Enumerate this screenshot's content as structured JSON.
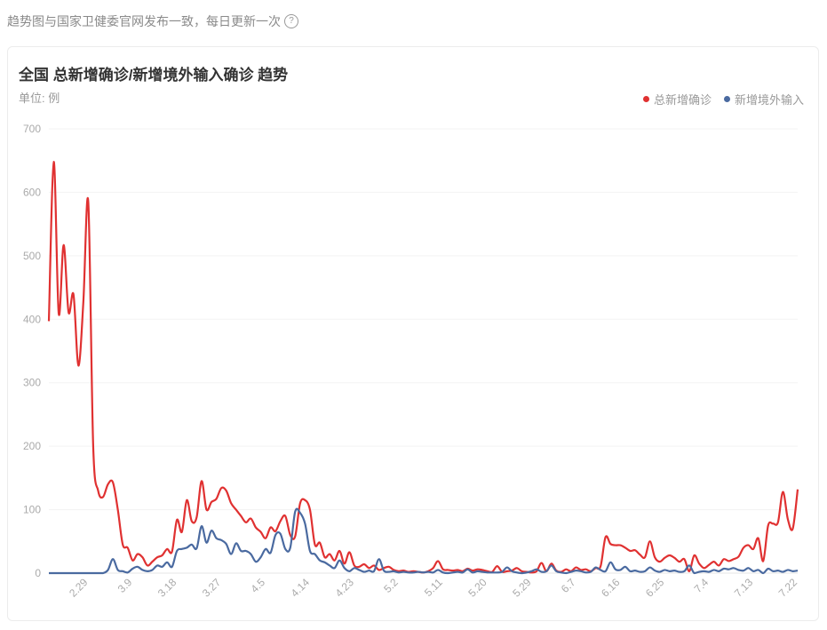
{
  "header": {
    "note": "趋势图与国家卫健委官网发布一致，每日更新一次",
    "help_icon": "question-circle-icon",
    "help_glyph": "?"
  },
  "card": {
    "title": "全国 总新增确诊/新增境外输入确诊 趋势",
    "unit": "单位: 例"
  },
  "colors": {
    "total": "#e03131",
    "imported": "#4a6aa0",
    "grid": "#f3f3f3"
  },
  "chart_data": {
    "type": "line",
    "title": "全国 总新增确诊/新增境外输入确诊 趋势",
    "ylabel": "单位: 例",
    "ylim": [
      0,
      700
    ],
    "yticks": [
      0,
      100,
      200,
      300,
      400,
      500,
      600,
      700
    ],
    "xticks": [
      "2.29",
      "3.9",
      "3.18",
      "3.27",
      "4.5",
      "4.14",
      "4.23",
      "5.2",
      "5.11",
      "5.20",
      "5.29",
      "6.7",
      "6.16",
      "6.25",
      "7.4",
      "7.13",
      "7.22"
    ],
    "grid": true,
    "legend": "top-right",
    "x": [
      "2.21",
      "2.22",
      "2.23",
      "2.24",
      "2.25",
      "2.26",
      "2.27",
      "2.28",
      "2.29",
      "3.1",
      "3.2",
      "3.3",
      "3.4",
      "3.5",
      "3.6",
      "3.7",
      "3.8",
      "3.9",
      "3.10",
      "3.11",
      "3.12",
      "3.13",
      "3.14",
      "3.15",
      "3.16",
      "3.17",
      "3.18",
      "3.19",
      "3.20",
      "3.21",
      "3.22",
      "3.23",
      "3.24",
      "3.25",
      "3.26",
      "3.27",
      "3.28",
      "3.29",
      "3.30",
      "3.31",
      "4.1",
      "4.2",
      "4.3",
      "4.4",
      "4.5",
      "4.6",
      "4.7",
      "4.8",
      "4.9",
      "4.10",
      "4.11",
      "4.12",
      "4.13",
      "4.14",
      "4.15",
      "4.16",
      "4.17",
      "4.18",
      "4.19",
      "4.20",
      "4.21",
      "4.22",
      "4.23",
      "4.24",
      "4.25",
      "4.26",
      "4.27",
      "4.28",
      "4.29",
      "4.30",
      "5.1",
      "5.2",
      "5.3",
      "5.4",
      "5.5",
      "5.6",
      "5.7",
      "5.8",
      "5.9",
      "5.10",
      "5.11",
      "5.12",
      "5.13",
      "5.14",
      "5.15",
      "5.16",
      "5.17",
      "5.18",
      "5.19",
      "5.20",
      "5.21",
      "5.22",
      "5.23",
      "5.24",
      "5.25",
      "5.26",
      "5.27",
      "5.28",
      "5.29",
      "5.30",
      "5.31",
      "6.1",
      "6.2",
      "6.3",
      "6.4",
      "6.5",
      "6.6",
      "6.7",
      "6.8",
      "6.9",
      "6.10",
      "6.11",
      "6.12",
      "6.13",
      "6.14",
      "6.15",
      "6.16",
      "6.17",
      "6.18",
      "6.19",
      "6.20",
      "6.21",
      "6.22",
      "6.23",
      "6.24",
      "6.25",
      "6.26",
      "6.27",
      "6.28",
      "6.29",
      "6.30",
      "7.1",
      "7.2",
      "7.3",
      "7.4",
      "7.5",
      "7.6",
      "7.7",
      "7.8",
      "7.9",
      "7.10",
      "7.11",
      "7.12",
      "7.13",
      "7.14",
      "7.15",
      "7.16",
      "7.17",
      "7.18",
      "7.19",
      "7.20",
      "7.21",
      "7.22"
    ],
    "series": [
      {
        "name": "总新增确诊",
        "values": [
          397,
          648,
          409,
          517,
          411,
          439,
          327,
          427,
          585,
          200,
          130,
          120,
          140,
          143,
          100,
          45,
          40,
          20,
          30,
          25,
          12,
          18,
          25,
          28,
          38,
          34,
          84,
          65,
          115,
          82,
          88,
          145,
          100,
          112,
          117,
          134,
          130,
          110,
          100,
          90,
          80,
          86,
          72,
          65,
          55,
          72,
          66,
          82,
          90,
          60,
          58,
          110,
          115,
          100,
          45,
          48,
          25,
          30,
          20,
          35,
          15,
          33,
          12,
          10,
          14,
          8,
          12,
          5,
          8,
          10,
          5,
          3,
          4,
          2,
          3,
          2,
          1,
          3,
          8,
          19,
          6,
          5,
          4,
          5,
          3,
          7,
          4,
          6,
          5,
          3,
          2,
          11,
          2,
          3,
          4,
          8,
          3,
          2,
          1,
          3,
          16,
          3,
          15,
          4,
          2,
          6,
          3,
          9,
          5,
          6,
          3,
          8,
          11,
          57,
          46,
          44,
          44,
          40,
          35,
          36,
          29,
          25,
          50,
          25,
          18,
          24,
          28,
          24,
          18,
          22,
          3,
          28,
          15,
          8,
          13,
          18,
          12,
          22,
          19,
          22,
          26,
          40,
          44,
          38,
          55,
          19,
          75,
          78,
          80,
          128,
          85,
          70,
          132
        ]
      },
      {
        "name": "新增境外输入",
        "values": [
          0,
          0,
          0,
          0,
          0,
          0,
          0,
          0,
          0,
          0,
          0,
          0,
          5,
          22,
          5,
          3,
          1,
          7,
          10,
          5,
          3,
          5,
          12,
          10,
          17,
          10,
          35,
          38,
          40,
          45,
          39,
          74,
          48,
          67,
          55,
          52,
          46,
          30,
          47,
          35,
          35,
          30,
          18,
          25,
          38,
          32,
          60,
          62,
          38,
          40,
          97,
          95,
          78,
          35,
          30,
          20,
          17,
          12,
          8,
          20,
          8,
          3,
          8,
          5,
          2,
          4,
          3,
          22,
          4,
          2,
          3,
          1,
          2,
          1,
          1,
          2,
          1,
          2,
          1,
          5,
          1,
          0,
          1,
          2,
          1,
          6,
          1,
          3,
          2,
          1,
          1,
          1,
          2,
          9,
          3,
          1,
          0,
          1,
          3,
          6,
          2,
          3,
          12,
          3,
          1,
          0,
          2,
          4,
          3,
          1,
          2,
          9,
          5,
          3,
          17,
          6,
          5,
          10,
          3,
          4,
          2,
          3,
          9,
          4,
          2,
          5,
          3,
          4,
          2,
          3,
          12,
          0,
          2,
          3,
          2,
          5,
          3,
          7,
          6,
          8,
          5,
          4,
          8,
          3,
          5,
          0,
          7,
          3,
          4,
          2,
          5,
          3,
          4
        ]
      }
    ]
  }
}
